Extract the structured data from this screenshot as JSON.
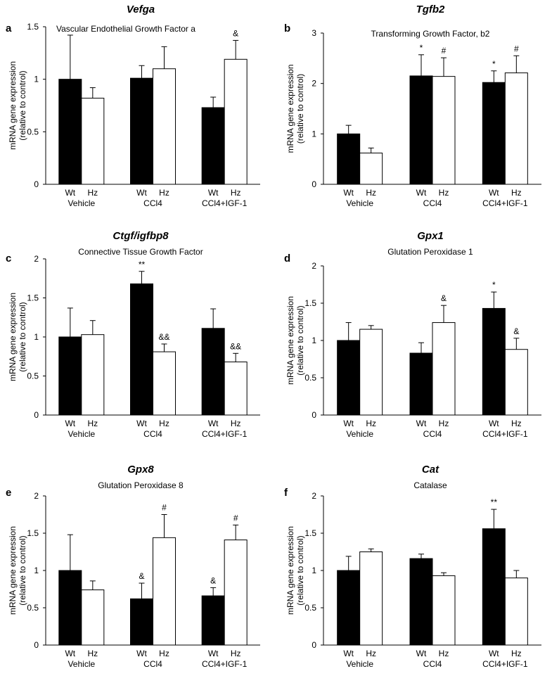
{
  "chart_data": [
    {
      "type": "bar",
      "panel_letter": "a",
      "title": "Vefga",
      "subtitle": "Vascular Endothelial Growth Factor a",
      "ylabel": [
        "mRNA gene expression",
        "(relative to control)"
      ],
      "ylim": [
        0,
        1.5
      ],
      "yticks": [
        0,
        0.5,
        1,
        1.5
      ],
      "groups": [
        "Vehicle",
        "CCl4",
        "CCl4+IGF-1"
      ],
      "bar_labels": [
        "Wt",
        "Hz"
      ],
      "series": [
        {
          "name": "Wt",
          "color": "#000000",
          "values": [
            1.0,
            1.01,
            0.73
          ],
          "error_top": [
            1.42,
            1.13,
            0.83
          ],
          "annotations": [
            "",
            "",
            ""
          ]
        },
        {
          "name": "Hz",
          "color": "#ffffff",
          "values": [
            0.82,
            1.1,
            1.19
          ],
          "error_top": [
            0.92,
            1.31,
            1.37
          ],
          "annotations": [
            "",
            "",
            "&"
          ]
        }
      ]
    },
    {
      "type": "bar",
      "panel_letter": "b",
      "title": "Tgfb2",
      "subtitle": "Transforming Growth Factor, b2",
      "ylabel": [
        "mRNA gene expression",
        "(relative to control)"
      ],
      "ylim": [
        0,
        3
      ],
      "yticks": [
        0,
        1,
        2,
        3
      ],
      "groups": [
        "Vehicle",
        "CCl4",
        "CCl4+IGF-1"
      ],
      "bar_labels": [
        "Wt",
        "Hz"
      ],
      "series": [
        {
          "name": "Wt",
          "color": "#000000",
          "values": [
            1.0,
            2.15,
            2.02
          ],
          "error_top": [
            1.17,
            2.57,
            2.25
          ],
          "annotations": [
            "",
            "*",
            "*"
          ]
        },
        {
          "name": "Hz",
          "color": "#ffffff",
          "values": [
            0.62,
            2.14,
            2.21
          ],
          "error_top": [
            0.72,
            2.51,
            2.55
          ],
          "annotations": [
            "",
            "#",
            "#"
          ]
        }
      ]
    },
    {
      "type": "bar",
      "panel_letter": "c",
      "title": "Ctgf/igfbp8",
      "subtitle": "Connective Tissue Growth Factor",
      "ylabel": [
        "mRNA gene expression",
        "(relative to control)"
      ],
      "ylim": [
        0,
        2
      ],
      "yticks": [
        0,
        0.5,
        1,
        1.5,
        2
      ],
      "groups": [
        "Vehicle",
        "CCl4",
        "CCl4+IGF-1"
      ],
      "bar_labels": [
        "Wt",
        "Hz"
      ],
      "series": [
        {
          "name": "Wt",
          "color": "#000000",
          "values": [
            1.0,
            1.68,
            1.11
          ],
          "error_top": [
            1.37,
            1.84,
            1.36
          ],
          "annotations": [
            "",
            "**",
            ""
          ]
        },
        {
          "name": "Hz",
          "color": "#ffffff",
          "values": [
            1.03,
            0.81,
            0.68
          ],
          "error_top": [
            1.21,
            0.91,
            0.79
          ],
          "annotations": [
            "",
            "&&",
            "&&"
          ]
        }
      ]
    },
    {
      "type": "bar",
      "panel_letter": "d",
      "title": "Gpx1",
      "subtitle": "Glutation Peroxidase 1",
      "ylabel": [
        "mRNA gene expression",
        "(relative to control)"
      ],
      "ylim": [
        0,
        2
      ],
      "yticks": [
        0,
        0.5,
        1,
        1.5,
        2
      ],
      "groups": [
        "Vehicle",
        "CCl4",
        "CCl4+IGF-1"
      ],
      "bar_labels": [
        "Wt",
        "Hz"
      ],
      "series": [
        {
          "name": "Wt",
          "color": "#000000",
          "values": [
            1.0,
            0.83,
            1.43
          ],
          "error_top": [
            1.24,
            0.97,
            1.65
          ],
          "annotations": [
            "",
            "",
            "*"
          ]
        },
        {
          "name": "Hz",
          "color": "#ffffff",
          "values": [
            1.15,
            1.24,
            0.88
          ],
          "error_top": [
            1.2,
            1.47,
            1.03
          ],
          "annotations": [
            "",
            "&",
            "&"
          ]
        }
      ]
    },
    {
      "type": "bar",
      "panel_letter": "e",
      "title": "Gpx8",
      "subtitle": "Glutation Peroxidase 8",
      "ylabel": [
        "mRNA gene expression",
        "(relative to control)"
      ],
      "ylim": [
        0,
        2
      ],
      "yticks": [
        0,
        0.5,
        1,
        1.5,
        2
      ],
      "groups": [
        "Vehicle",
        "CCl4",
        "CCl4+IGF-1"
      ],
      "bar_labels": [
        "Wt",
        "Hz"
      ],
      "series": [
        {
          "name": "Wt",
          "color": "#000000",
          "values": [
            1.0,
            0.62,
            0.66
          ],
          "error_top": [
            1.48,
            0.83,
            0.77
          ],
          "annotations": [
            "",
            "&",
            "&"
          ]
        },
        {
          "name": "Hz",
          "color": "#ffffff",
          "values": [
            0.74,
            1.44,
            1.41
          ],
          "error_top": [
            0.86,
            1.75,
            1.61
          ],
          "annotations": [
            "",
            "#",
            "#"
          ]
        }
      ]
    },
    {
      "type": "bar",
      "panel_letter": "f",
      "title": "Cat",
      "subtitle": "Catalase",
      "ylabel": [
        "mRNA gene expression",
        "(relative to control)"
      ],
      "ylim": [
        0,
        2
      ],
      "yticks": [
        0,
        0.5,
        1,
        1.5,
        2
      ],
      "groups": [
        "Vehicle",
        "CCl4",
        "CCl4+IGF-1"
      ],
      "bar_labels": [
        "Wt",
        "Hz"
      ],
      "series": [
        {
          "name": "Wt",
          "color": "#000000",
          "values": [
            1.0,
            1.16,
            1.56
          ],
          "error_top": [
            1.19,
            1.22,
            1.82
          ],
          "annotations": [
            "",
            "",
            "**"
          ]
        },
        {
          "name": "Hz",
          "color": "#ffffff",
          "values": [
            1.25,
            0.93,
            0.9
          ],
          "error_top": [
            1.29,
            0.97,
            1.0
          ],
          "annotations": [
            "",
            "",
            ""
          ]
        }
      ]
    }
  ]
}
